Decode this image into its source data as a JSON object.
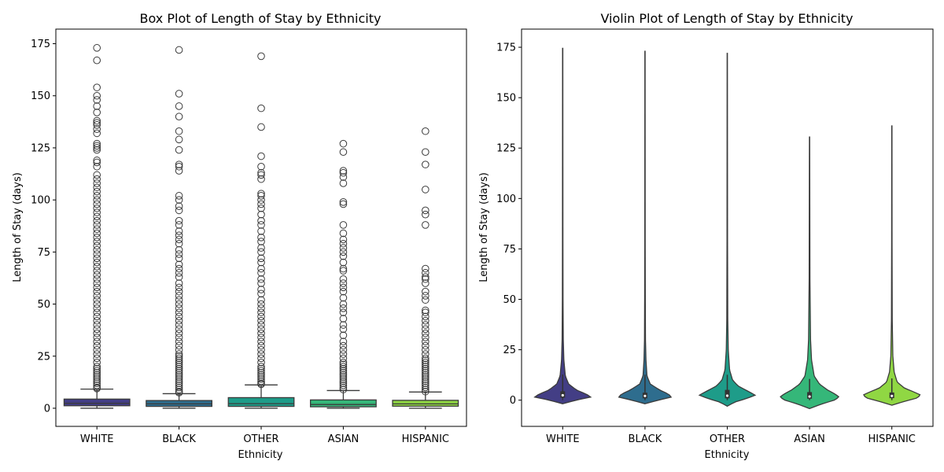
{
  "chart_data": [
    {
      "type": "box",
      "title": "Box Plot of Length of Stay by Ethnicity",
      "xlabel": "Ethnicity",
      "ylabel": "Length of Stay (days)",
      "ylim": [
        -8.7,
        182
      ],
      "yticks": [
        0,
        25,
        50,
        75,
        100,
        125,
        150,
        175
      ],
      "categories": [
        "WHITE",
        "BLACK",
        "OTHER",
        "ASIAN",
        "HISPANIC"
      ],
      "colors": [
        "#433e85",
        "#2e6d8e",
        "#1e9c89",
        "#35b779",
        "#90d743"
      ],
      "boxes": [
        {
          "name": "WHITE",
          "whisker_low": 0,
          "q1": 1.2,
          "median": 2.4,
          "q3": 4.4,
          "whisker_high": 9.2,
          "outliers": [
            9.5,
            10,
            11,
            12,
            13,
            14,
            15,
            16,
            17,
            18,
            19,
            20,
            22,
            24,
            26,
            28,
            30,
            32,
            34,
            36,
            38,
            40,
            42,
            44,
            46,
            48,
            50,
            52,
            54,
            56,
            58,
            60,
            62,
            64,
            66,
            68,
            70,
            72,
            74,
            76,
            78,
            80,
            82,
            84,
            86,
            88,
            90,
            92,
            94,
            96,
            98,
            100,
            102,
            104,
            106,
            108,
            110,
            112,
            116,
            118,
            119,
            124,
            125,
            126,
            127,
            132,
            134,
            136,
            137,
            138,
            142,
            145,
            148,
            150,
            154,
            167,
            173
          ]
        },
        {
          "name": "BLACK",
          "whisker_low": 0,
          "q1": 0.9,
          "median": 2.1,
          "q3": 3.7,
          "whisker_high": 7.0,
          "outliers": [
            7.5,
            8,
            9,
            10,
            11,
            12,
            13,
            14,
            15,
            16,
            17,
            18,
            19,
            20,
            21,
            22,
            23,
            24,
            25,
            26,
            28,
            30,
            32,
            34,
            36,
            38,
            40,
            42,
            44,
            46,
            48,
            50,
            52,
            54,
            56,
            58,
            60,
            63,
            65,
            67,
            69,
            72,
            74,
            76,
            79,
            81,
            83,
            85,
            88,
            90,
            95,
            97,
            100,
            102,
            114,
            116,
            117,
            124,
            129,
            133,
            140,
            145,
            151,
            172
          ]
        },
        {
          "name": "OTHER",
          "whisker_low": 0,
          "q1": 0.9,
          "median": 2.2,
          "q3": 5.1,
          "whisker_high": 11.2,
          "outliers": [
            11.5,
            12,
            13,
            14,
            15,
            16,
            17,
            18,
            19,
            20,
            22,
            24,
            26,
            28,
            30,
            32,
            34,
            36,
            38,
            40,
            42,
            44,
            46,
            48,
            50,
            52,
            55,
            57,
            60,
            62,
            65,
            67,
            70,
            72,
            75,
            77,
            80,
            82,
            85,
            88,
            90,
            93,
            96,
            98,
            100,
            102,
            103,
            110,
            112,
            113,
            116,
            121,
            135,
            144,
            169
          ]
        },
        {
          "name": "ASIAN",
          "whisker_low": 0,
          "q1": 0.7,
          "median": 1.8,
          "q3": 4.0,
          "whisker_high": 8.5,
          "outliers": [
            9,
            10,
            11,
            12,
            13,
            14,
            15,
            16,
            17,
            18,
            19,
            20,
            21,
            22,
            24,
            26,
            28,
            30,
            32,
            35,
            38,
            40,
            43,
            46,
            48,
            50,
            53,
            56,
            58,
            60,
            62,
            66,
            67,
            70,
            73,
            75,
            77,
            79,
            81,
            84,
            88,
            98,
            99,
            108,
            111,
            113,
            114,
            123,
            127
          ]
        },
        {
          "name": "HISPANIC",
          "whisker_low": 0,
          "q1": 1.0,
          "median": 2.1,
          "q3": 3.8,
          "whisker_high": 7.8,
          "outliers": [
            8,
            9,
            10,
            11,
            12,
            13,
            14,
            15,
            16,
            17,
            18,
            19,
            20,
            21,
            22,
            23,
            24,
            26,
            28,
            30,
            32,
            34,
            36,
            38,
            40,
            42,
            44,
            46,
            47,
            52,
            54,
            56,
            60,
            62,
            63,
            65,
            67,
            88,
            93,
            95,
            105,
            117,
            123,
            133
          ]
        }
      ]
    },
    {
      "type": "violin",
      "title": "Violin Plot of Length of Stay by Ethnicity",
      "xlabel": "Ethnicity",
      "ylabel": "Length of Stay (days)",
      "ylim": [
        -13,
        184
      ],
      "yticks": [
        0,
        25,
        50,
        75,
        100,
        125,
        150,
        175
      ],
      "categories": [
        "WHITE",
        "BLACK",
        "OTHER",
        "ASIAN",
        "HISPANIC"
      ],
      "colors": [
        "#433e85",
        "#2e6d8e",
        "#1e9c89",
        "#35b779",
        "#90d743"
      ],
      "violins": [
        {
          "name": "WHITE",
          "min": -1.8,
          "max": 174.5,
          "q1": 1.2,
          "median": 2.4,
          "q3": 4.4,
          "profile": [
            [
              -1.8,
              0
            ],
            [
              0,
              0.4
            ],
            [
              1.5,
              0.85
            ],
            [
              3,
              0.72
            ],
            [
              5,
              0.42
            ],
            [
              8,
              0.18
            ],
            [
              12,
              0.08
            ],
            [
              20,
              0.035
            ],
            [
              30,
              0.018
            ],
            [
              50,
              0.01
            ],
            [
              80,
              0.007
            ],
            [
              174.5,
              0.004
            ]
          ]
        },
        {
          "name": "BLACK",
          "min": -1.8,
          "max": 173,
          "q1": 0.9,
          "median": 2.1,
          "q3": 3.7,
          "profile": [
            [
              -1.8,
              0
            ],
            [
              0,
              0.4
            ],
            [
              1.5,
              0.8
            ],
            [
              3,
              0.72
            ],
            [
              5,
              0.45
            ],
            [
              8,
              0.16
            ],
            [
              12,
              0.06
            ],
            [
              20,
              0.03
            ],
            [
              30,
              0.015
            ],
            [
              50,
              0.01
            ],
            [
              80,
              0.006
            ],
            [
              173,
              0.004
            ]
          ]
        },
        {
          "name": "OTHER",
          "min": -3,
          "max": 172,
          "q1": 0.9,
          "median": 2.2,
          "q3": 5.1,
          "profile": [
            [
              -3,
              0
            ],
            [
              -1,
              0.22
            ],
            [
              1,
              0.62
            ],
            [
              2.5,
              0.85
            ],
            [
              4,
              0.68
            ],
            [
              7,
              0.33
            ],
            [
              10,
              0.16
            ],
            [
              15,
              0.07
            ],
            [
              25,
              0.03
            ],
            [
              40,
              0.015
            ],
            [
              80,
              0.008
            ],
            [
              172,
              0.004
            ]
          ]
        },
        {
          "name": "ASIAN",
          "min": -4.2,
          "max": 130.5,
          "q1": 0.7,
          "median": 1.8,
          "q3": 4.0,
          "profile": [
            [
              -4.2,
              0
            ],
            [
              -2,
              0.35
            ],
            [
              0,
              0.75
            ],
            [
              1.5,
              0.9
            ],
            [
              3,
              0.78
            ],
            [
              5,
              0.55
            ],
            [
              8,
              0.3
            ],
            [
              12,
              0.14
            ],
            [
              20,
              0.06
            ],
            [
              30,
              0.03
            ],
            [
              60,
              0.012
            ],
            [
              130.5,
              0.004
            ]
          ]
        },
        {
          "name": "HISPANIC",
          "min": -2.5,
          "max": 136,
          "q1": 1.0,
          "median": 2.1,
          "q3": 3.8,
          "profile": [
            [
              -2.5,
              0
            ],
            [
              -1,
              0.3
            ],
            [
              1,
              0.75
            ],
            [
              2.5,
              0.88
            ],
            [
              4,
              0.68
            ],
            [
              6,
              0.38
            ],
            [
              9,
              0.16
            ],
            [
              14,
              0.07
            ],
            [
              22,
              0.03
            ],
            [
              40,
              0.012
            ],
            [
              80,
              0.006
            ],
            [
              136,
              0.004
            ]
          ]
        }
      ]
    }
  ]
}
